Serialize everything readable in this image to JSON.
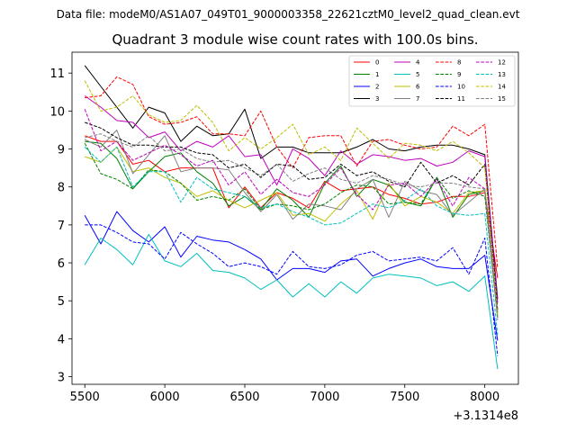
{
  "chart_data": {
    "type": "line",
    "suptitle": "Data file: modeM0/AS1A07_049T01_9000003358_22621cztM0_level2_quad_clean.evt",
    "title": "Quadrant 3 module wise count rates with 100.0s bins.",
    "xlabel": "",
    "ylabel": "",
    "x_offset_label": "+3.1314e8",
    "xlim": [
      5420,
      8210
    ],
    "ylim": [
      2.8,
      11.55
    ],
    "xticks": [
      5500,
      6000,
      6500,
      7000,
      7500,
      8000
    ],
    "yticks": [
      3,
      4,
      5,
      6,
      7,
      8,
      9,
      10,
      11
    ],
    "x": [
      5500,
      5600,
      5700,
      5800,
      5900,
      6000,
      6100,
      6200,
      6300,
      6400,
      6500,
      6600,
      6700,
      6800,
      6900,
      7000,
      7100,
      7200,
      7300,
      7400,
      7500,
      7600,
      7700,
      7800,
      7900,
      8000,
      8080
    ],
    "legend_position": "upper right",
    "series": [
      {
        "name": "0",
        "color": "#ff0000",
        "dash": "solid",
        "values": [
          9.35,
          9.2,
          9.2,
          8.6,
          8.7,
          8.4,
          8.5,
          8.5,
          8.5,
          7.45,
          8.0,
          7.45,
          7.85,
          7.7,
          7.45,
          8.15,
          7.9,
          7.95,
          8.0,
          7.8,
          7.7,
          7.55,
          7.6,
          7.75,
          7.75,
          7.85,
          5.6
        ]
      },
      {
        "name": "1",
        "color": "#008000",
        "dash": "solid",
        "values": [
          9.2,
          9.15,
          8.75,
          7.95,
          8.4,
          8.8,
          8.9,
          8.4,
          8.1,
          7.5,
          7.75,
          7.4,
          7.95,
          7.65,
          7.2,
          8.1,
          8.55,
          7.75,
          8.2,
          8.05,
          7.6,
          7.5,
          8.25,
          7.2,
          7.8,
          7.9,
          4.55
        ]
      },
      {
        "name": "2",
        "color": "#0000ff",
        "dash": "solid",
        "values": [
          7.25,
          6.5,
          7.35,
          6.85,
          6.55,
          6.95,
          6.15,
          6.7,
          6.6,
          6.55,
          6.35,
          6.1,
          5.55,
          5.85,
          5.85,
          5.75,
          6.05,
          6.1,
          5.65,
          5.85,
          6.0,
          6.1,
          5.9,
          5.85,
          5.85,
          6.2,
          3.95
        ]
      },
      {
        "name": "3",
        "color": "#000000",
        "dash": "solid",
        "values": [
          11.2,
          10.65,
          10.1,
          9.55,
          10.1,
          9.95,
          9.2,
          9.6,
          9.35,
          9.4,
          10.05,
          8.75,
          9.05,
          9.05,
          8.9,
          8.9,
          8.9,
          9.05,
          9.25,
          9.0,
          8.95,
          9.05,
          9.1,
          9.1,
          9.0,
          8.85,
          5.05
        ]
      },
      {
        "name": "4",
        "color": "#bf00bf",
        "dash": "solid",
        "values": [
          10.4,
          10.1,
          9.75,
          9.7,
          9.3,
          9.45,
          8.95,
          9.2,
          9.05,
          9.35,
          8.8,
          8.85,
          8.05,
          9.0,
          8.75,
          8.3,
          8.95,
          8.6,
          8.85,
          8.8,
          8.7,
          8.75,
          8.55,
          8.65,
          8.95,
          8.8,
          4.95
        ]
      },
      {
        "name": "5",
        "color": "#00bfbf",
        "dash": "solid",
        "values": [
          5.95,
          6.65,
          6.35,
          5.95,
          6.75,
          6.05,
          5.9,
          6.25,
          5.8,
          5.75,
          5.6,
          5.3,
          5.55,
          5.1,
          5.45,
          5.1,
          5.5,
          5.2,
          5.6,
          5.7,
          5.65,
          5.6,
          5.4,
          5.5,
          5.25,
          5.65,
          3.2
        ]
      },
      {
        "name": "6",
        "color": "#bfbf00",
        "dash": "solid",
        "values": [
          8.8,
          8.65,
          9.05,
          8.4,
          8.5,
          8.25,
          8.1,
          7.75,
          7.9,
          7.65,
          7.45,
          7.65,
          7.85,
          7.25,
          7.3,
          7.1,
          7.55,
          7.9,
          7.15,
          8.1,
          7.5,
          7.75,
          7.6,
          7.3,
          7.85,
          7.9,
          4.65
        ]
      },
      {
        "name": "7",
        "color": "#808080",
        "dash": "solid",
        "values": [
          9.25,
          9.05,
          9.5,
          8.35,
          8.85,
          9.35,
          8.4,
          8.5,
          8.5,
          8.45,
          7.85,
          7.35,
          7.8,
          7.15,
          7.55,
          7.5,
          7.4,
          7.95,
          8.2,
          7.2,
          8.15,
          7.9,
          7.8,
          7.25,
          7.6,
          7.95,
          4.7
        ]
      },
      {
        "name": "8",
        "color": "#ff0000",
        "dash": "dashed",
        "values": [
          10.35,
          10.4,
          10.9,
          10.7,
          9.85,
          9.65,
          9.7,
          9.85,
          9.4,
          9.4,
          9.35,
          10.0,
          9.05,
          8.5,
          9.3,
          9.35,
          9.35,
          8.55,
          9.2,
          9.25,
          9.1,
          9.0,
          9.05,
          9.6,
          9.35,
          9.65,
          5.85
        ]
      },
      {
        "name": "9",
        "color": "#008000",
        "dash": "dashed",
        "values": [
          9.15,
          8.35,
          8.2,
          7.95,
          8.45,
          8.4,
          8.1,
          7.65,
          7.75,
          7.65,
          7.95,
          7.4,
          7.55,
          7.5,
          7.4,
          7.55,
          7.85,
          8.05,
          8.0,
          7.55,
          7.6,
          7.55,
          8.25,
          7.7,
          7.9,
          7.75,
          4.6
        ]
      },
      {
        "name": "10",
        "color": "#0000ff",
        "dash": "dashed",
        "values": [
          7.0,
          7.0,
          6.8,
          6.55,
          6.5,
          6.1,
          6.8,
          6.5,
          6.25,
          5.9,
          6.0,
          5.9,
          5.7,
          6.3,
          5.9,
          5.85,
          5.95,
          6.2,
          6.3,
          6.05,
          6.1,
          6.15,
          6.05,
          6.4,
          5.7,
          6.65,
          3.55
        ]
      },
      {
        "name": "11",
        "color": "#000000",
        "dash": "dashed",
        "values": [
          9.7,
          9.55,
          9.3,
          9.1,
          9.1,
          9.05,
          9.05,
          8.9,
          8.85,
          8.5,
          8.6,
          8.25,
          8.6,
          8.55,
          8.2,
          8.25,
          8.6,
          8.3,
          8.4,
          8.15,
          8.0,
          8.65,
          8.1,
          8.3,
          8.05,
          8.6,
          4.75
        ]
      },
      {
        "name": "12",
        "color": "#bf00bf",
        "dash": "dashed",
        "values": [
          10.05,
          8.95,
          9.2,
          8.7,
          8.9,
          9.1,
          8.85,
          8.55,
          8.7,
          8.05,
          8.4,
          7.8,
          8.2,
          7.85,
          7.75,
          8.05,
          8.5,
          7.8,
          7.4,
          8.05,
          8.1,
          7.75,
          8.2,
          7.5,
          8.25,
          7.95,
          4.5
        ]
      },
      {
        "name": "13",
        "color": "#00bfbf",
        "dash": "dashed",
        "values": [
          9.05,
          8.65,
          9.05,
          8.0,
          8.4,
          8.4,
          7.6,
          8.25,
          7.95,
          7.85,
          7.75,
          7.45,
          7.55,
          7.35,
          7.2,
          7.0,
          7.05,
          7.3,
          7.55,
          7.45,
          7.65,
          7.95,
          7.5,
          7.3,
          7.25,
          7.3,
          4.1
        ]
      },
      {
        "name": "14",
        "color": "#bfbf00",
        "dash": "dashed",
        "values": [
          10.8,
          10.0,
          10.1,
          10.4,
          9.9,
          9.7,
          9.75,
          10.15,
          9.7,
          8.95,
          9.3,
          9.0,
          9.3,
          9.65,
          8.85,
          9.05,
          8.7,
          9.55,
          9.15,
          8.75,
          9.15,
          9.1,
          8.95,
          9.2,
          8.9,
          8.5,
          4.6
        ]
      },
      {
        "name": "15",
        "color": "#808080",
        "dash": "dashed",
        "values": [
          9.3,
          9.4,
          9.2,
          9.05,
          9.35,
          8.95,
          9.0,
          8.75,
          8.65,
          8.7,
          8.5,
          8.3,
          8.6,
          8.15,
          8.35,
          8.5,
          8.2,
          8.1,
          8.3,
          8.2,
          8.05,
          8.0,
          8.1,
          8.1,
          8.0,
          7.95,
          4.5
        ]
      }
    ]
  }
}
